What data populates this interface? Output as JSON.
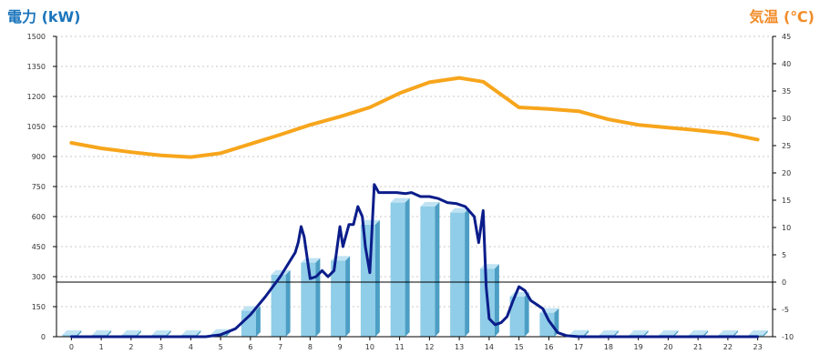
{
  "chart_data": {
    "type": "bar+line",
    "left_axis_title": "電力 (kW)",
    "right_axis_title": "気温 (℃)",
    "colors": {
      "left_title": "#1b75bc",
      "right_title": "#f28c28",
      "bar_front": "#8fcde8",
      "bar_side": "#4c9ec4",
      "bar_top": "#bfe3f3",
      "power_line": "#0b1d8a",
      "temp_line": "#f7a51c",
      "grid": "#c8c8c8",
      "axis": "#000000"
    },
    "ylim_left": [
      0,
      1500
    ],
    "ylim_right": [
      -10,
      45
    ],
    "y_ticks_left": [
      "0",
      "150",
      "300",
      "450",
      "600",
      "750",
      "900",
      "1050",
      "1200",
      "1350",
      "1500"
    ],
    "y_ticks_right": [
      "-10",
      "-5",
      "0",
      "5",
      "10",
      "15",
      "20",
      "25",
      "30",
      "35",
      "40",
      "45"
    ],
    "categories": [
      "0",
      "1",
      "2",
      "3",
      "4",
      "5",
      "6",
      "7",
      "8",
      "9",
      "10",
      "11",
      "12",
      "13",
      "14",
      "15",
      "16",
      "17",
      "18",
      "19",
      "20",
      "21",
      "22",
      "23"
    ],
    "bar_values": [
      0,
      0,
      0,
      0,
      0,
      15,
      130,
      310,
      370,
      380,
      560,
      670,
      650,
      620,
      340,
      200,
      120,
      10,
      0,
      0,
      0,
      0,
      0,
      0
    ],
    "power_line": [
      [
        0,
        0
      ],
      [
        1,
        0
      ],
      [
        2,
        0
      ],
      [
        3,
        0
      ],
      [
        4,
        0
      ],
      [
        4.5,
        0
      ],
      [
        5,
        10
      ],
      [
        5.5,
        40
      ],
      [
        6,
        110
      ],
      [
        6.5,
        200
      ],
      [
        7,
        300
      ],
      [
        7.5,
        420
      ],
      [
        7.6,
        470
      ],
      [
        7.7,
        550
      ],
      [
        7.8,
        500
      ],
      [
        8,
        290
      ],
      [
        8.2,
        300
      ],
      [
        8.4,
        330
      ],
      [
        8.6,
        300
      ],
      [
        8.8,
        330
      ],
      [
        9,
        550
      ],
      [
        9.1,
        450
      ],
      [
        9.3,
        560
      ],
      [
        9.45,
        560
      ],
      [
        9.6,
        650
      ],
      [
        9.75,
        600
      ],
      [
        9.85,
        450
      ],
      [
        10,
        320
      ],
      [
        10.15,
        760
      ],
      [
        10.3,
        720
      ],
      [
        10.6,
        720
      ],
      [
        10.9,
        720
      ],
      [
        11.2,
        715
      ],
      [
        11.4,
        720
      ],
      [
        11.7,
        700
      ],
      [
        12,
        700
      ],
      [
        12.3,
        690
      ],
      [
        12.6,
        670
      ],
      [
        12.9,
        665
      ],
      [
        13.2,
        650
      ],
      [
        13.5,
        600
      ],
      [
        13.65,
        470
      ],
      [
        13.8,
        630
      ],
      [
        13.9,
        250
      ],
      [
        14,
        90
      ],
      [
        14.2,
        60
      ],
      [
        14.4,
        70
      ],
      [
        14.6,
        100
      ],
      [
        14.8,
        180
      ],
      [
        15,
        250
      ],
      [
        15.2,
        230
      ],
      [
        15.4,
        180
      ],
      [
        15.6,
        160
      ],
      [
        15.8,
        140
      ],
      [
        16,
        80
      ],
      [
        16.3,
        20
      ],
      [
        16.6,
        5
      ],
      [
        17,
        0
      ],
      [
        18,
        0
      ],
      [
        19,
        0
      ],
      [
        20,
        0
      ],
      [
        21,
        0
      ],
      [
        22,
        0
      ],
      [
        23,
        0
      ]
    ],
    "temperature": [
      [
        0,
        25.5
      ],
      [
        1,
        24.5
      ],
      [
        2,
        23.8
      ],
      [
        3,
        23.2
      ],
      [
        4,
        22.9
      ],
      [
        5,
        23.6
      ],
      [
        6,
        25.3
      ],
      [
        7,
        27
      ],
      [
        8,
        28.8
      ],
      [
        9,
        30.3
      ],
      [
        10,
        32
      ],
      [
        11,
        34.6
      ],
      [
        12,
        36.6
      ],
      [
        13,
        37.4
      ],
      [
        13.8,
        36.7
      ],
      [
        15,
        32
      ],
      [
        16,
        31.7
      ],
      [
        17,
        31.3
      ],
      [
        18,
        29.8
      ],
      [
        19,
        28.8
      ],
      [
        20,
        28.3
      ],
      [
        21,
        27.8
      ],
      [
        22,
        27.2
      ],
      [
        23,
        26.1
      ]
    ]
  }
}
